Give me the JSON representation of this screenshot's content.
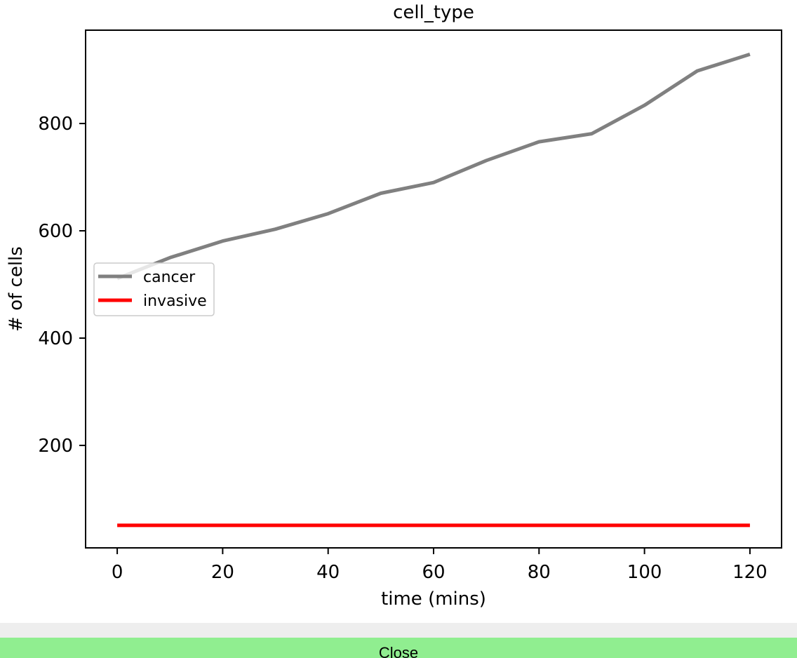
{
  "chart_data": {
    "type": "line",
    "title": "cell_type",
    "xlabel": "time (mins)",
    "ylabel": "# of cells",
    "xlim": [
      -6,
      126
    ],
    "ylim": [
      9,
      974
    ],
    "x_ticks": [
      0,
      20,
      40,
      60,
      80,
      100,
      120
    ],
    "y_ticks": [
      200,
      400,
      600,
      800
    ],
    "x": [
      0,
      10,
      20,
      30,
      40,
      50,
      60,
      70,
      80,
      90,
      100,
      110,
      120
    ],
    "series": [
      {
        "name": "cancer",
        "color": "#808080",
        "values": [
          511,
          550,
          581,
          603,
          632,
          670,
          690,
          731,
          766,
          781,
          834,
          898,
          929
        ]
      },
      {
        "name": "invasive",
        "color": "#ff0000",
        "values": [
          51,
          51,
          51,
          51,
          51,
          51,
          51,
          51,
          51,
          51,
          51,
          51,
          51
        ]
      }
    ],
    "legend_position": "center-left",
    "grid": false
  },
  "footer": {
    "close_label": "Close",
    "close_color": "#90ee90"
  }
}
